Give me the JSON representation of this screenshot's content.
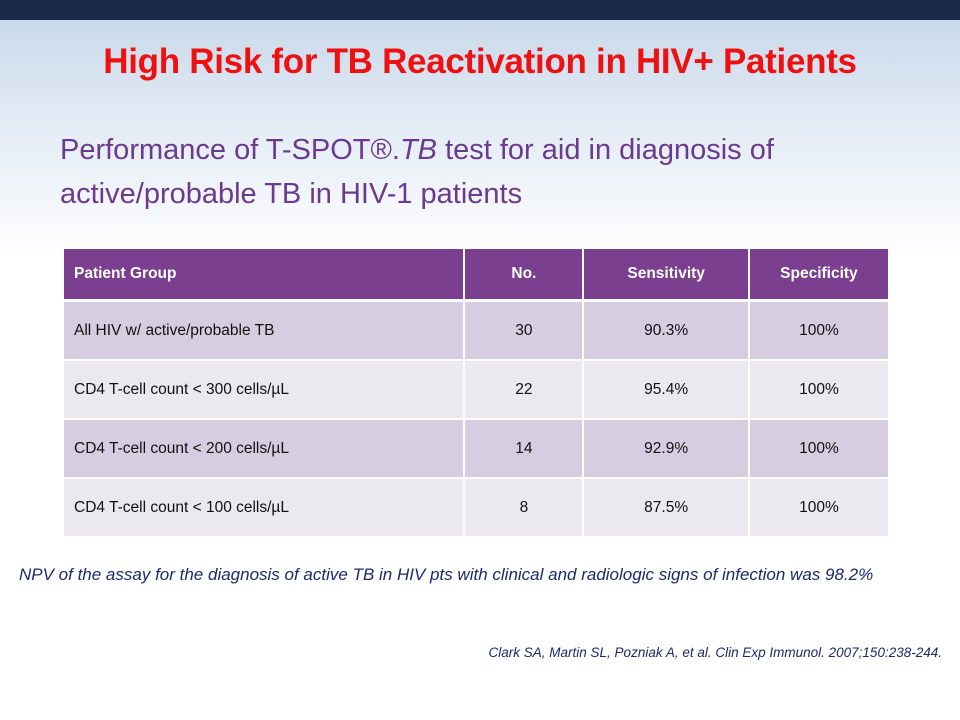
{
  "slide": {
    "title": "High Risk for TB Reactivation in HIV+ Patients",
    "subtitle_part1": "Performance of T-SPOT®.",
    "subtitle_italic": "TB",
    "subtitle_part2": " test for aid in diagnosis of active/probable TB in HIV-1 patients",
    "note": "NPV of the assay for the diagnosis of active TB in HIV pts with clinical and radiologic signs of infection was 98.2%",
    "citation": "Clark SA, Martin SL, Pozniak A, et al. Clin Exp Immunol. 2007;150:238-244."
  },
  "table": {
    "headers": [
      "Patient Group",
      "No.",
      "Sensitivity",
      "Specificity"
    ],
    "rows": [
      {
        "group": "All HIV w/ active/probable TB",
        "no": "30",
        "sensitivity": "90.3%",
        "specificity": "100%"
      },
      {
        "group": "CD4 T-cell count < 300 cells/µL",
        "no": "22",
        "sensitivity": "95.4%",
        "specificity": "100%"
      },
      {
        "group": "CD4 T-cell count < 200 cells/µL",
        "no": "14",
        "sensitivity": "92.9%",
        "specificity": "100%"
      },
      {
        "group": "CD4 T-cell count < 100 cells/µL",
        "no": "8",
        "sensitivity": "87.5%",
        "specificity": "100%"
      }
    ]
  },
  "colors": {
    "title": "#ee1111",
    "subtitle": "#6b3a8f",
    "header_bg": "#7a3f8f",
    "row_odd": "#d6cde0",
    "row_even": "#ece8f0",
    "note": "#1a2a6c",
    "top_bar": "#1b2a4a"
  }
}
